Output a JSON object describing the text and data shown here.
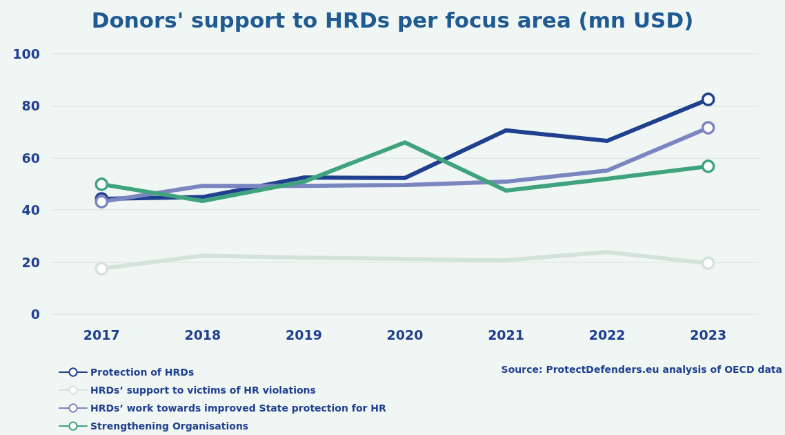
{
  "chart_data": {
    "type": "line",
    "title": "Donors' support to HRDs per focus area (mn USD)",
    "categories": [
      "2017",
      "2018",
      "2019",
      "2020",
      "2021",
      "2022",
      "2023"
    ],
    "series": [
      {
        "name": "Protection of HRDs",
        "color": "#1f3f8f",
        "values": [
          44.3,
          45,
          52.5,
          52.3,
          70.6,
          66.6,
          82.5
        ]
      },
      {
        "name": "HRDs’ support to victims of HR violations",
        "color": "#d3e3da",
        "values": [
          17.5,
          22.5,
          21.7,
          21.2,
          20.7,
          23.9,
          19.6
        ]
      },
      {
        "name": "HRDs’ work towards improved State protection for HR",
        "color": "#7b85c0",
        "values": [
          43.2,
          49.3,
          49.3,
          49.6,
          50.9,
          55.2,
          71.6
        ]
      },
      {
        "name": "Strengthening Organisations",
        "color": "#3fa37e",
        "values": [
          49.9,
          43.5,
          50.9,
          66,
          47.5,
          52,
          56.8
        ]
      }
    ],
    "ylim": [
      0,
      100
    ],
    "yticks": [
      0,
      20,
      40,
      60,
      80,
      100
    ],
    "grid": "y",
    "legend": "bottom left",
    "line_style": "solid",
    "annotations": [
      "Source: ProtectDefenders.eu analysis of OECD data"
    ]
  }
}
